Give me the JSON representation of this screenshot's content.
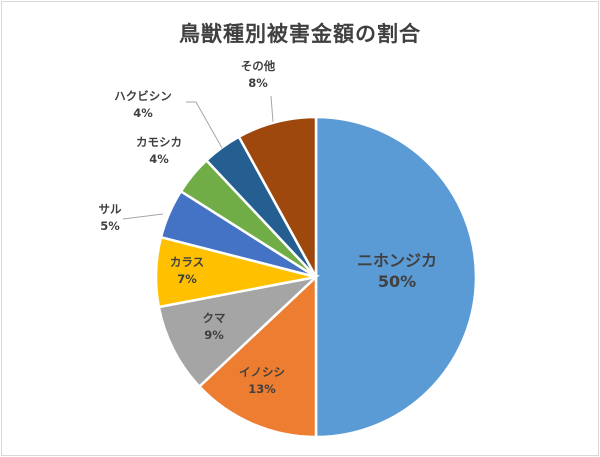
{
  "chart_data": {
    "type": "pie",
    "title": "鳥獣種別被害金額の割合",
    "slices": [
      {
        "label": "ニホンジカ",
        "pct_label": "50%",
        "value": 50,
        "color": "#5b9bd5"
      },
      {
        "label": "イノシシ",
        "pct_label": "13%",
        "value": 13,
        "color": "#ed7d31"
      },
      {
        "label": "クマ",
        "pct_label": "9%",
        "value": 9,
        "color": "#a5a5a5"
      },
      {
        "label": "カラス",
        "pct_label": "7%",
        "value": 7,
        "color": "#ffc000"
      },
      {
        "label": "サル",
        "pct_label": "5%",
        "value": 5,
        "color": "#4472c4"
      },
      {
        "label": "カモシカ",
        "pct_label": "4%",
        "value": 4,
        "color": "#70ad47"
      },
      {
        "label": "ハクビシン",
        "pct_label": "4%",
        "value": 4,
        "color": "#255e91"
      },
      {
        "label": "その他",
        "pct_label": "8%",
        "value": 8,
        "color": "#9e480e"
      }
    ]
  }
}
